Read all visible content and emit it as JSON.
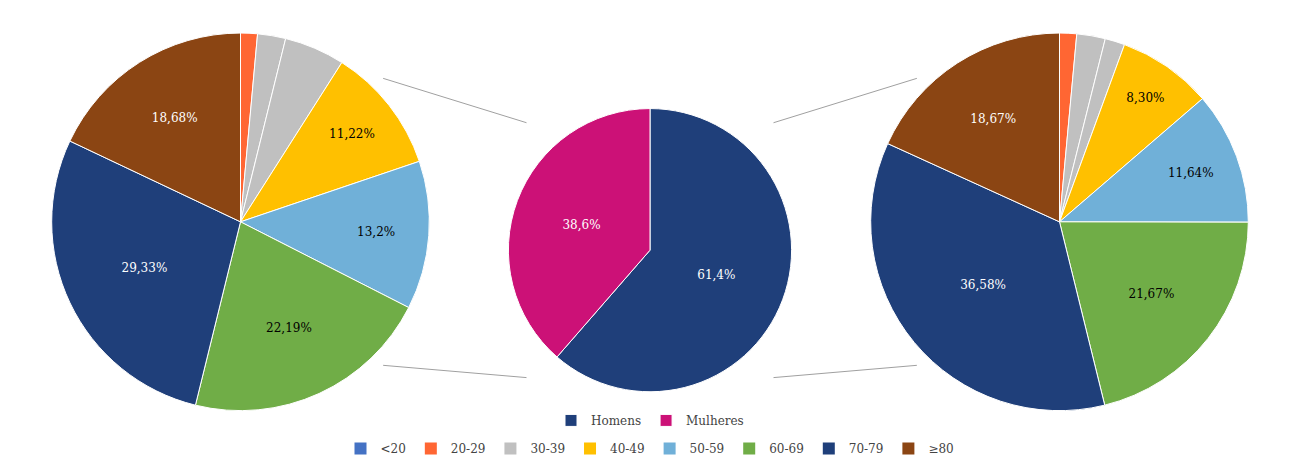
{
  "chart_data": [
    {
      "type": "pie",
      "values": [
        1.5,
        2.5,
        5.38,
        11.22,
        13.2,
        22.19,
        29.33,
        18.68
      ],
      "value_labels": [
        null,
        null,
        null,
        "11,22%",
        "13,2%",
        "22,19%",
        "29,33%",
        "18,68%"
      ],
      "colors": [
        "#FF6633",
        "#C0C0C0",
        "#C0C0C0",
        "#FFC000",
        "#70B0D8",
        "#70AD47",
        "#1F3F7A",
        "#8B4513"
      ],
      "data_labels": true
    },
    {
      "type": "pie",
      "categories": [
        "Homens",
        "Mulheres"
      ],
      "values": [
        61.4,
        38.6
      ],
      "value_labels": [
        "61,4%",
        "38,6%"
      ],
      "colors": [
        "#1F3F7A",
        "#CC1177"
      ],
      "legend": "bottom",
      "data_labels": true
    },
    {
      "type": "pie",
      "values": [
        1.5,
        2.5,
        1.74,
        8.3,
        11.64,
        21.67,
        36.58,
        18.67
      ],
      "value_labels": [
        null,
        null,
        null,
        "8,30%",
        "11,64%",
        "21,67%",
        "36,58%",
        "18,67%"
      ],
      "colors": [
        "#FF6633",
        "#C0C0C0",
        "#C0C0C0",
        "#FFC000",
        "#70B0D8",
        "#70AD47",
        "#1F3F7A",
        "#8B4513"
      ],
      "data_labels": true
    },
    {
      "type": "legend",
      "categories": [
        "<20",
        "20-29",
        "30-39",
        "40-49",
        "50-59",
        "60-69",
        "70-79",
        "≥80"
      ],
      "colors": [
        "#4472C4",
        "#FF6633",
        "#C0C0C0",
        "#FFC000",
        "#70B0D8",
        "#70AD47",
        "#1F3F7A",
        "#8B4513"
      ],
      "legend": "bottom"
    }
  ]
}
